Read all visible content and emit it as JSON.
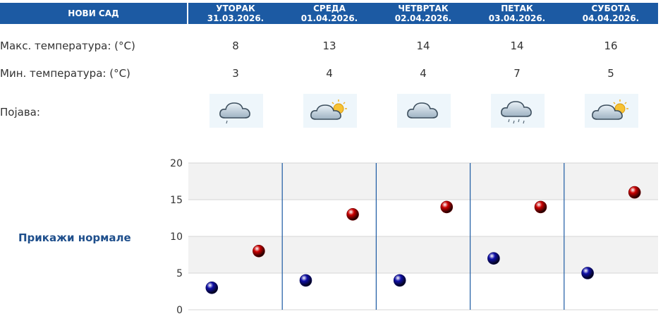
{
  "header": {
    "city": "НОВИ САД",
    "days": [
      {
        "name": "УТОРАК",
        "date": "31.03.2026."
      },
      {
        "name": "СРЕДА",
        "date": "01.04.2026."
      },
      {
        "name": "ЧЕТВРТАК",
        "date": "02.04.2026."
      },
      {
        "name": "ПЕТАК",
        "date": "03.04.2026."
      },
      {
        "name": "СУБОТА",
        "date": "04.04.2026."
      }
    ]
  },
  "rows": {
    "max_label": "Макс. температура: (°C)",
    "min_label": "Мин. температура: (°C)",
    "phenomenon_label": "Појава:"
  },
  "max_temps": [
    "8",
    "13",
    "14",
    "14",
    "16"
  ],
  "min_temps": [
    "3",
    "4",
    "4",
    "7",
    "5"
  ],
  "icons": [
    "cloud-light-rain-icon",
    "partly-cloudy-icon",
    "cloud-icon",
    "cloud-rain-icon",
    "partly-cloudy-icon"
  ],
  "normals_link": "Прикажи нормале",
  "colors": {
    "header_bg": "#1c5aa3",
    "max_dot": "#cc0000",
    "min_dot": "#1010a8",
    "link": "#1f4f8c"
  },
  "chart_data": {
    "type": "scatter",
    "categories": [
      "31.03.2026.",
      "01.04.2026.",
      "02.04.2026.",
      "03.04.2026.",
      "04.04.2026."
    ],
    "series": [
      {
        "values": [
          8,
          13,
          14,
          14,
          16
        ],
        "color": "#cc0000"
      },
      {
        "values": [
          3,
          4,
          4,
          7,
          5
        ],
        "color": "#1010a8"
      }
    ],
    "ylim": [
      0,
      20
    ],
    "yticks": [
      "0",
      "5",
      "10",
      "15",
      "20"
    ],
    "grid": true
  }
}
